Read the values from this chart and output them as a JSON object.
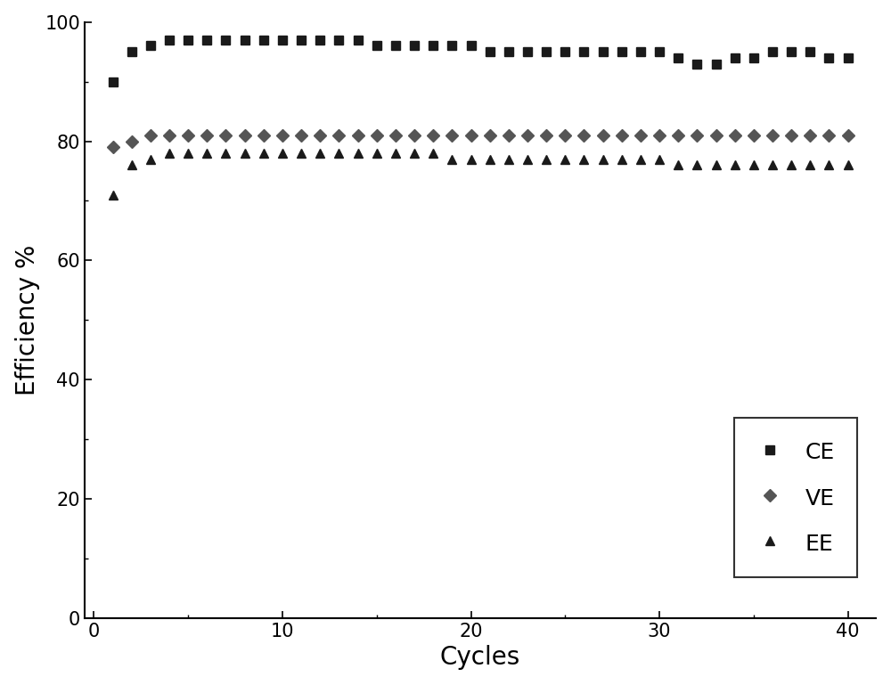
{
  "title": "",
  "xlabel": "Cycles",
  "ylabel": "Efficiency %",
  "xlim": [
    -0.5,
    41.5
  ],
  "ylim": [
    0,
    100
  ],
  "xticks": [
    0,
    10,
    20,
    30,
    40
  ],
  "yticks": [
    0,
    20,
    40,
    60,
    80,
    100
  ],
  "background_color": "#ffffff",
  "CE": {
    "x": [
      1,
      2,
      3,
      4,
      5,
      6,
      7,
      8,
      9,
      10,
      11,
      12,
      13,
      14,
      15,
      16,
      17,
      18,
      19,
      20,
      21,
      22,
      23,
      24,
      25,
      26,
      27,
      28,
      29,
      30,
      31,
      32,
      33,
      34,
      35,
      36,
      37,
      38,
      39,
      40
    ],
    "y": [
      90,
      95,
      96,
      97,
      97,
      97,
      97,
      97,
      97,
      97,
      97,
      97,
      97,
      97,
      96,
      96,
      96,
      96,
      96,
      96,
      95,
      95,
      95,
      95,
      95,
      95,
      95,
      95,
      95,
      95,
      94,
      93,
      93,
      94,
      94,
      95,
      95,
      95,
      94,
      94
    ],
    "color": "#1a1a1a",
    "marker": "s",
    "markersize": 7,
    "label": "CE"
  },
  "VE": {
    "x": [
      1,
      2,
      3,
      4,
      5,
      6,
      7,
      8,
      9,
      10,
      11,
      12,
      13,
      14,
      15,
      16,
      17,
      18,
      19,
      20,
      21,
      22,
      23,
      24,
      25,
      26,
      27,
      28,
      29,
      30,
      31,
      32,
      33,
      34,
      35,
      36,
      37,
      38,
      39,
      40
    ],
    "y": [
      79,
      80,
      81,
      81,
      81,
      81,
      81,
      81,
      81,
      81,
      81,
      81,
      81,
      81,
      81,
      81,
      81,
      81,
      81,
      81,
      81,
      81,
      81,
      81,
      81,
      81,
      81,
      81,
      81,
      81,
      81,
      81,
      81,
      81,
      81,
      81,
      81,
      81,
      81,
      81
    ],
    "color": "#555555",
    "marker": "D",
    "markersize": 7,
    "label": "VE"
  },
  "EE": {
    "x": [
      1,
      2,
      3,
      4,
      5,
      6,
      7,
      8,
      9,
      10,
      11,
      12,
      13,
      14,
      15,
      16,
      17,
      18,
      19,
      20,
      21,
      22,
      23,
      24,
      25,
      26,
      27,
      28,
      29,
      30,
      31,
      32,
      33,
      34,
      35,
      36,
      37,
      38,
      39,
      40
    ],
    "y": [
      71,
      76,
      77,
      78,
      78,
      78,
      78,
      78,
      78,
      78,
      78,
      78,
      78,
      78,
      78,
      78,
      78,
      78,
      77,
      77,
      77,
      77,
      77,
      77,
      77,
      77,
      77,
      77,
      77,
      77,
      76,
      76,
      76,
      76,
      76,
      76,
      76,
      76,
      76,
      76
    ],
    "color": "#1a1a1a",
    "marker": "^",
    "markersize": 7,
    "label": "EE"
  },
  "font_size": 18,
  "tick_font_size": 15,
  "label_font_size": 20
}
